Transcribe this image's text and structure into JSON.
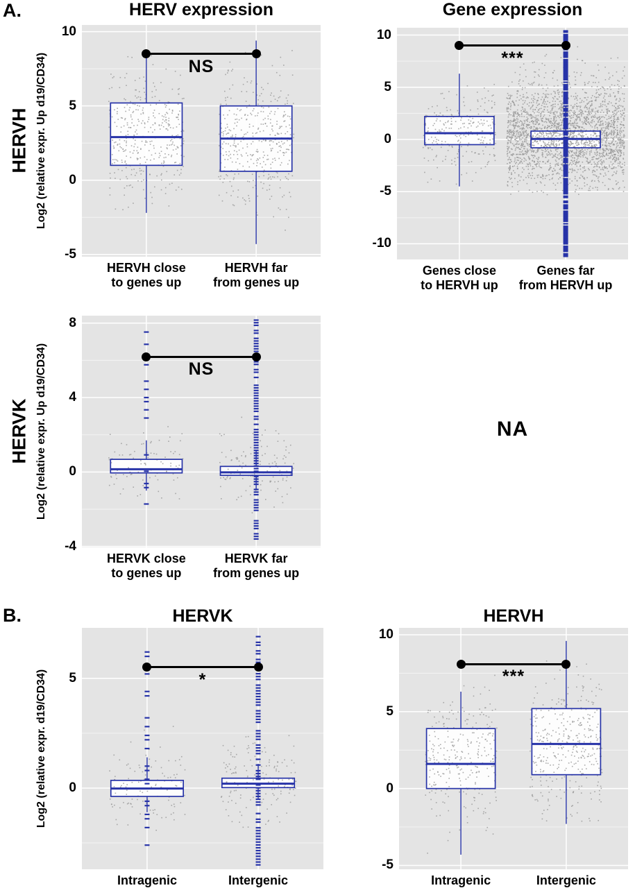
{
  "figure": {
    "panel_a_label": "A.",
    "panel_b_label": "B.",
    "column_headers": [
      "HERV expression",
      "Gene expression"
    ],
    "row_labels": [
      "HERVH",
      "HERVK"
    ],
    "na_text": "NA"
  },
  "colors": {
    "plot_bg": "#e4e4e4",
    "grid": "#ffffff",
    "box": "#2733a8",
    "jitter": "#969696",
    "significance": "#000000"
  },
  "chart_data": [
    {
      "type": "boxplot",
      "id": "a-hervh-herv-expression",
      "title": "",
      "ylabel": "Log2 (relative expr. Up d19/CD34)",
      "ylim": [
        -5.15,
        10.45
      ],
      "yticks": [
        -5,
        0,
        5,
        10
      ],
      "categories": [
        "HERVH close\nto genes up",
        "HERVH far\nfrom genes up"
      ],
      "boxes": [
        {
          "q1": 1.0,
          "median": 2.9,
          "q3": 5.2,
          "whisker_low": -2.2,
          "whisker_high": 8.4,
          "jitter": {
            "n": 380,
            "mean": 3.0,
            "sd": 2.2,
            "min": -2.3,
            "max": 8.4,
            "seed": 11
          }
        },
        {
          "q1": 0.6,
          "median": 2.8,
          "q3": 5.0,
          "whisker_low": -4.3,
          "whisker_high": 9.4,
          "jitter": {
            "n": 420,
            "mean": 2.8,
            "sd": 2.4,
            "min": -4.3,
            "max": 9.4,
            "seed": 12
          }
        }
      ],
      "significance": {
        "label": "NS",
        "y": 8.5
      }
    },
    {
      "type": "boxplot",
      "id": "a-hervh-gene-expression",
      "title": "",
      "ylabel": "",
      "ylim": [
        -11.5,
        10.7
      ],
      "yticks": [
        -10,
        -5,
        0,
        5,
        10
      ],
      "categories": [
        "Genes close\nto HERVH up",
        "Genes far\nfrom HERVH up"
      ],
      "boxes": [
        {
          "q1": -0.5,
          "median": 0.6,
          "q3": 2.2,
          "whisker_low": -4.5,
          "whisker_high": 6.3,
          "jitter": {
            "n": 260,
            "mean": 0.8,
            "sd": 1.8,
            "min": -4.4,
            "max": 8.8,
            "seed": 21
          }
        },
        {
          "q1": -0.8,
          "median": 0.05,
          "q3": 0.8,
          "whisker_low": -3.2,
          "whisker_high": 3.2,
          "jitter": {
            "n": 2600,
            "mean": 0.4,
            "sd": 2.6,
            "min": -5.3,
            "max": 9.3,
            "seed": 22,
            "width": 1.7
          },
          "outliers": {
            "min": -11.2,
            "max": 10.4,
            "step": 0.12,
            "density": 0.85
          }
        }
      ],
      "significance": {
        "label": "***",
        "y": 9.0
      }
    },
    {
      "type": "boxplot",
      "id": "a-hervk-herv-expression",
      "title": "",
      "ylabel": "Log2 (relative expr. Up d19/CD34)",
      "ylim": [
        -4.05,
        8.4
      ],
      "yticks": [
        -4,
        0,
        4,
        8
      ],
      "categories": [
        "HERVK close\nto genes up",
        "HERVK far\nfrom genes up"
      ],
      "boxes": [
        {
          "q1": -0.05,
          "median": 0.15,
          "q3": 0.68,
          "whisker_low": -1.0,
          "whisker_high": 1.7,
          "jitter": {
            "n": 90,
            "mean": 0.4,
            "sd": 0.9,
            "min": -1.8,
            "max": 3.5,
            "seed": 31
          },
          "outliers": {
            "min": -2.6,
            "max": 8.0,
            "step": 0.22,
            "density": 0.4
          }
        },
        {
          "q1": -0.18,
          "median": -0.02,
          "q3": 0.3,
          "whisker_low": -0.9,
          "whisker_high": 1.2,
          "jitter": {
            "n": 130,
            "mean": 0.15,
            "sd": 0.9,
            "min": -2.2,
            "max": 4.0,
            "seed": 32
          },
          "outliers": {
            "min": -3.6,
            "max": 8.2,
            "step": 0.14,
            "density": 0.75
          }
        }
      ],
      "significance": {
        "label": "NS",
        "y": 6.2
      }
    },
    {
      "type": "boxplot",
      "id": "b-hervk",
      "title": "HERVK",
      "ylabel": "Log2 (relative expr. d19/CD34)",
      "ylim": [
        -3.7,
        7.3
      ],
      "yticks": [
        0,
        5
      ],
      "categories": [
        "Intragenic",
        "Intergenic"
      ],
      "boxes": [
        {
          "q1": -0.38,
          "median": -0.02,
          "q3": 0.35,
          "whisker_low": -1.1,
          "whisker_high": 1.4,
          "jitter": {
            "n": 110,
            "mean": 0.0,
            "sd": 0.9,
            "min": -2.4,
            "max": 3.8,
            "seed": 41
          },
          "outliers": {
            "min": -3.0,
            "max": 6.3,
            "step": 0.2,
            "density": 0.45
          }
        },
        {
          "q1": 0.02,
          "median": 0.2,
          "q3": 0.45,
          "whisker_low": -0.5,
          "whisker_high": 1.1,
          "jitter": {
            "n": 150,
            "mean": 0.25,
            "sd": 0.9,
            "min": -2.0,
            "max": 4.2,
            "seed": 42
          },
          "outliers": {
            "min": -3.5,
            "max": 6.9,
            "step": 0.13,
            "density": 0.8
          }
        }
      ],
      "significance": {
        "label": "*",
        "y": 5.5
      }
    },
    {
      "type": "boxplot",
      "id": "b-hervh",
      "title": "HERVH",
      "ylabel": "",
      "ylim": [
        -5.25,
        10.45
      ],
      "yticks": [
        -5,
        0,
        5,
        10
      ],
      "categories": [
        "Intragenic",
        "Intergenic"
      ],
      "boxes": [
        {
          "q1": 0.0,
          "median": 1.6,
          "q3": 3.9,
          "whisker_low": -4.3,
          "whisker_high": 6.3,
          "jitter": {
            "n": 300,
            "mean": 1.9,
            "sd": 2.2,
            "min": -4.3,
            "max": 8.0,
            "seed": 51
          }
        },
        {
          "q1": 0.9,
          "median": 2.9,
          "q3": 5.2,
          "whisker_low": -2.3,
          "whisker_high": 9.6,
          "jitter": {
            "n": 380,
            "mean": 3.0,
            "sd": 2.3,
            "min": -2.3,
            "max": 9.6,
            "seed": 52
          }
        }
      ],
      "significance": {
        "label": "***",
        "y": 8.1
      }
    }
  ]
}
